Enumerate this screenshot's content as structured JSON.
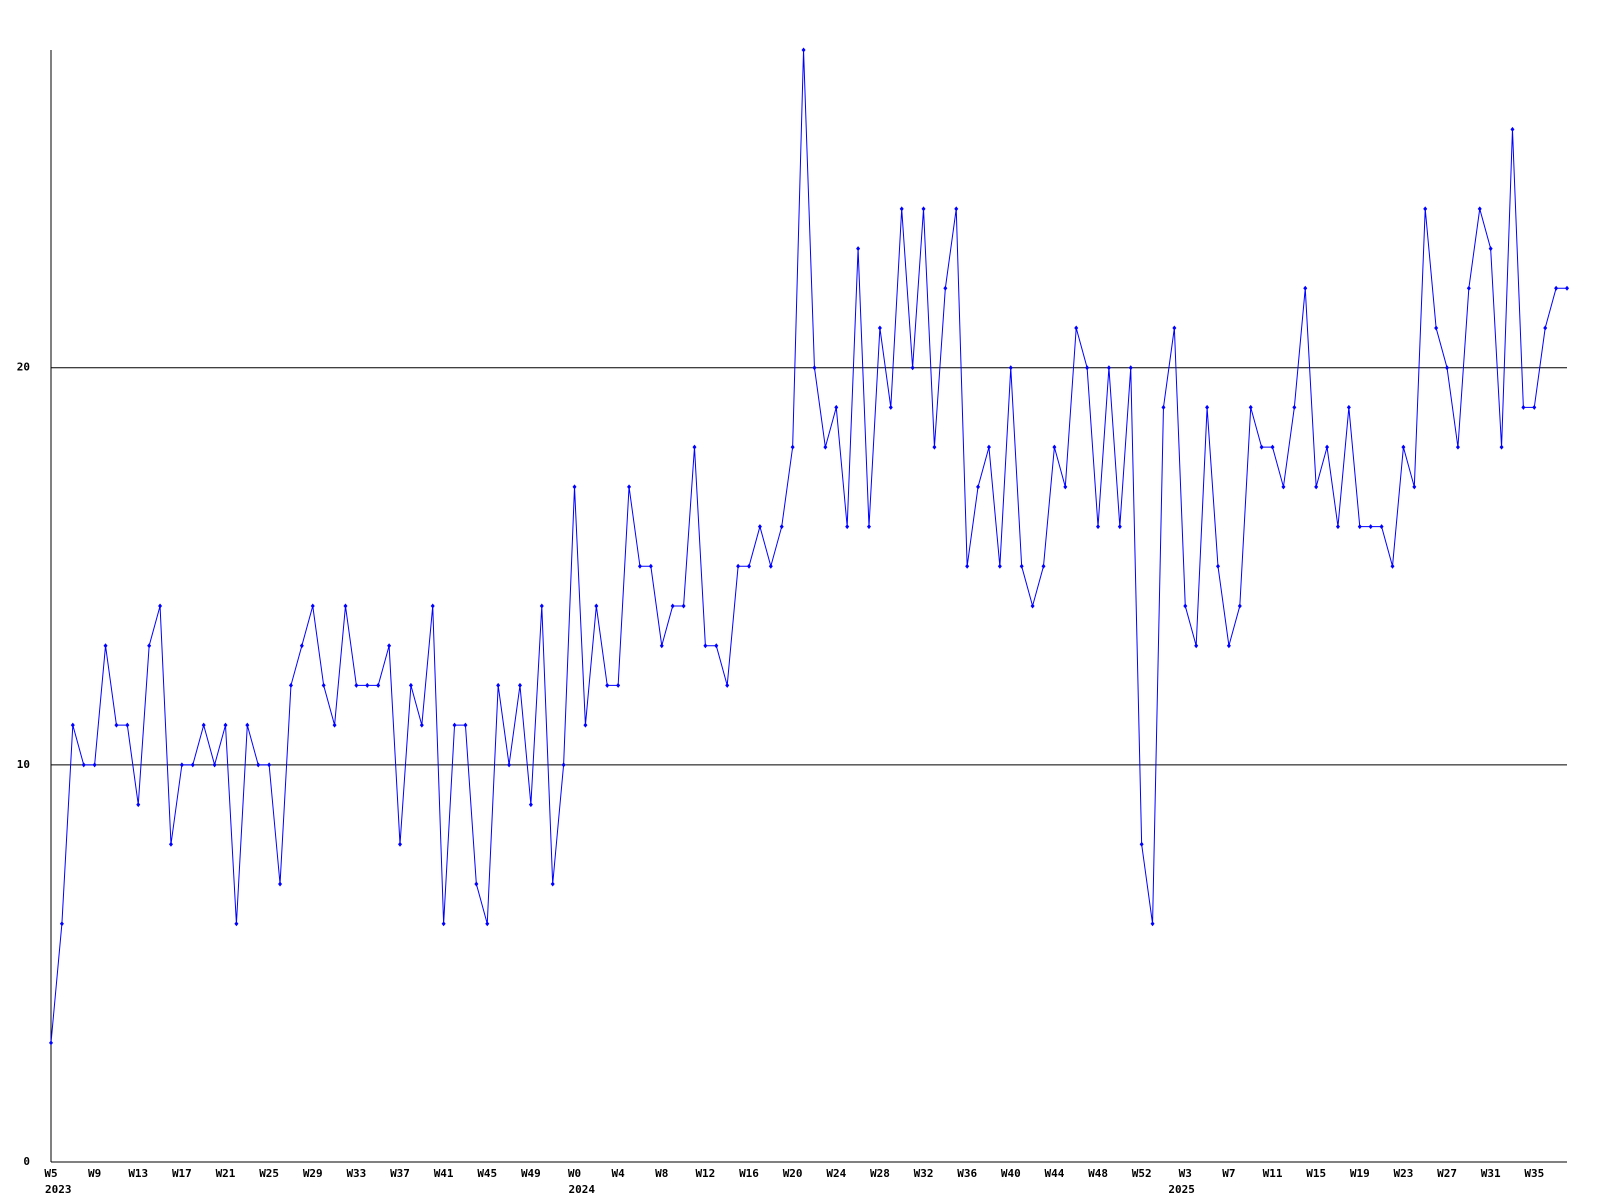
{
  "chart_data": {
    "type": "line",
    "categories": [
      "W5",
      null,
      null,
      null,
      "W9",
      null,
      null,
      null,
      "W13",
      null,
      null,
      null,
      "W17",
      null,
      null,
      null,
      "W21",
      null,
      null,
      null,
      "W25",
      null,
      null,
      null,
      "W29",
      null,
      null,
      null,
      "W33",
      null,
      null,
      null,
      "W37",
      null,
      null,
      null,
      "W41",
      null,
      null,
      null,
      "W45",
      null,
      null,
      null,
      "W49",
      null,
      null,
      null,
      "W0",
      null,
      null,
      null,
      "W4",
      null,
      null,
      null,
      "W8",
      null,
      null,
      null,
      "W12",
      null,
      null,
      null,
      "W16",
      null,
      null,
      null,
      "W20",
      null,
      null,
      null,
      "W24",
      null,
      null,
      null,
      "W28",
      null,
      null,
      null,
      "W32",
      null,
      null,
      null,
      "W36",
      null,
      null,
      null,
      "W40",
      null,
      null,
      null,
      "W44",
      null,
      null,
      null,
      "W48",
      null,
      null,
      null,
      "W52",
      null,
      null,
      null,
      "W3",
      null,
      null,
      null,
      "W7",
      null,
      null,
      null,
      "W11",
      null,
      null,
      null,
      "W15",
      null,
      null,
      null,
      "W19",
      null,
      null,
      null,
      "W23",
      null,
      null,
      null,
      "W27",
      null,
      null,
      null,
      "W31",
      null,
      null,
      null,
      "W35",
      null,
      null,
      null
    ],
    "category_years": [
      "2023",
      null,
      null,
      null,
      null,
      null,
      null,
      null,
      null,
      null,
      null,
      null,
      null,
      null,
      null,
      null,
      null,
      null,
      null,
      null,
      null,
      null,
      null,
      null,
      null,
      null,
      null,
      null,
      null,
      null,
      null,
      null,
      null,
      null,
      null,
      null,
      null,
      null,
      null,
      null,
      null,
      null,
      null,
      null,
      null,
      null,
      null,
      null,
      "2024",
      null,
      null,
      null,
      null,
      null,
      null,
      null,
      null,
      null,
      null,
      null,
      null,
      null,
      null,
      null,
      null,
      null,
      null,
      null,
      null,
      null,
      null,
      null,
      null,
      null,
      null,
      null,
      null,
      null,
      null,
      null,
      null,
      null,
      null,
      null,
      null,
      null,
      null,
      null,
      null,
      null,
      null,
      null,
      null,
      null,
      null,
      null,
      null,
      null,
      null,
      null,
      null,
      null,
      null,
      "2025",
      null,
      null,
      null,
      null,
      null,
      null,
      null,
      null,
      null,
      null,
      null,
      null,
      null,
      null,
      null,
      null,
      null,
      null,
      null,
      null,
      null,
      null,
      null,
      null,
      null,
      null,
      null,
      null,
      null,
      null,
      null,
      null,
      null,
      null,
      null,
      null,
      null,
      null
    ],
    "series": [
      {
        "color": "#0000ff",
        "values": [
          3,
          6,
          11,
          10,
          10,
          13,
          11,
          11,
          9,
          13,
          14,
          8,
          10,
          10,
          11,
          10,
          11,
          6,
          11,
          10,
          10,
          7,
          12,
          13,
          14,
          12,
          11,
          14,
          12,
          12,
          12,
          13,
          8,
          12,
          11,
          14,
          6,
          11,
          11,
          7,
          6,
          12,
          10,
          12,
          9,
          14,
          7,
          10,
          17,
          11,
          14,
          12,
          12,
          17,
          15,
          15,
          13,
          14,
          14,
          18,
          13,
          13,
          12,
          15,
          15,
          16,
          15,
          16,
          18,
          28,
          20,
          18,
          19,
          16,
          23,
          16,
          21,
          19,
          24,
          20,
          24,
          18,
          22,
          24,
          15,
          17,
          18,
          15,
          20,
          15,
          14,
          15,
          18,
          17,
          21,
          20,
          16,
          20,
          16,
          20,
          8,
          6,
          19,
          21,
          14,
          13,
          19,
          15,
          13,
          14,
          19,
          18,
          18,
          17,
          19,
          22,
          17,
          18,
          16,
          19,
          16,
          16,
          16,
          15,
          18,
          17,
          24,
          21,
          20,
          18,
          22,
          24,
          23,
          18,
          26,
          19,
          19,
          21,
          22,
          22
        ]
      }
    ],
    "ylim": [
      0,
      28
    ],
    "yticks": [
      0,
      10,
      20
    ],
    "grid": true
  }
}
